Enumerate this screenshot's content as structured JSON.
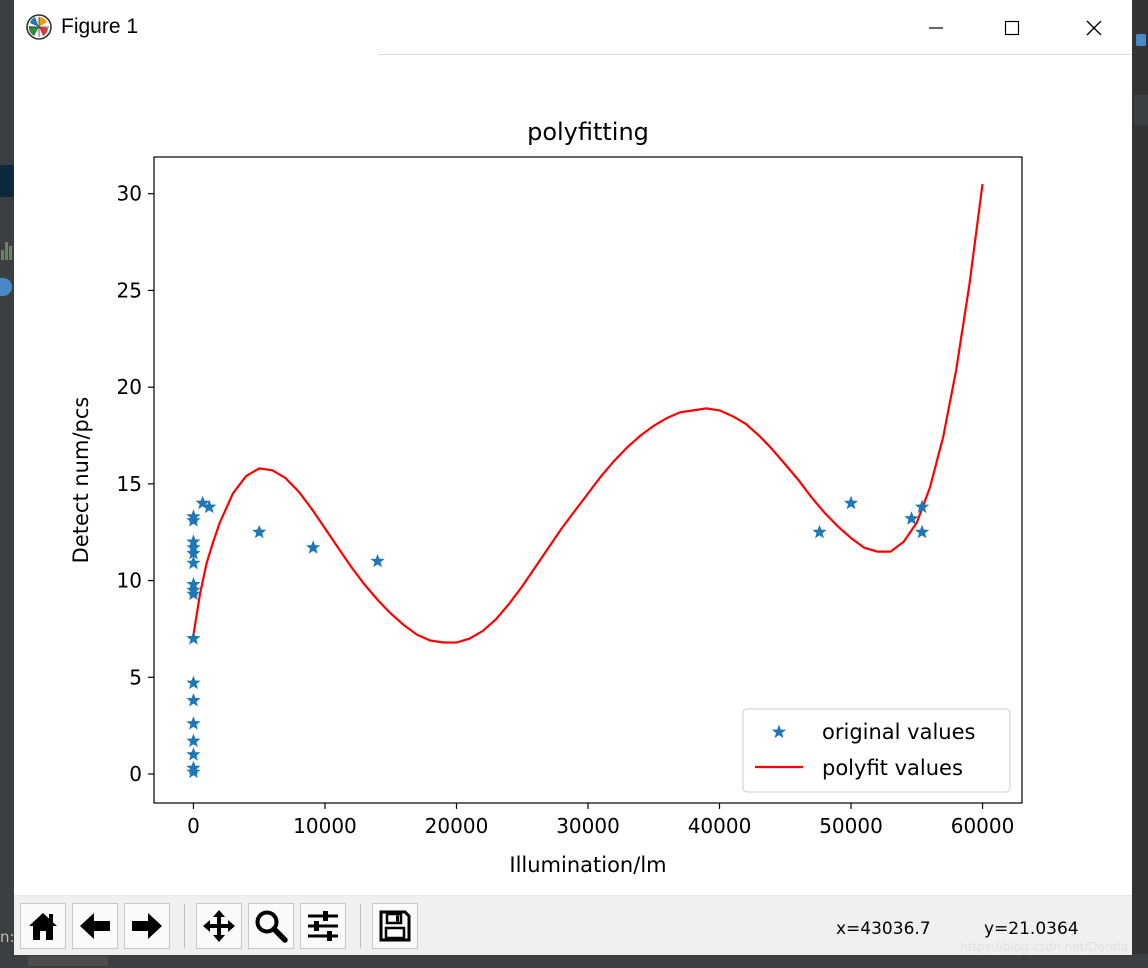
{
  "window": {
    "title": "Figure 1"
  },
  "chart_data": {
    "type": "line",
    "title": "polyfitting",
    "xlabel": "Illumination/lm",
    "ylabel": "Detect num/pcs",
    "xlim": [
      -3000,
      63000
    ],
    "ylim": [
      -1.5,
      31.9
    ],
    "xticks": [
      0,
      10000,
      20000,
      30000,
      40000,
      50000,
      60000
    ],
    "yticks": [
      0,
      5,
      10,
      15,
      20,
      25,
      30
    ],
    "grid": false,
    "legend_position": "lower-right",
    "series": [
      {
        "name": "original values",
        "kind": "scatter",
        "marker": "star",
        "color": "#1f77b4",
        "points": [
          [
            0,
            0.1
          ],
          [
            0,
            0.3
          ],
          [
            0,
            1.0
          ],
          [
            0,
            1.7
          ],
          [
            0,
            2.6
          ],
          [
            0,
            3.8
          ],
          [
            0,
            4.7
          ],
          [
            0,
            7.0
          ],
          [
            0,
            9.3
          ],
          [
            0,
            9.5
          ],
          [
            0,
            9.8
          ],
          [
            0,
            10.9
          ],
          [
            0,
            11.4
          ],
          [
            0,
            11.7
          ],
          [
            0,
            12.0
          ],
          [
            0,
            13.1
          ],
          [
            0,
            13.3
          ],
          [
            700,
            14.0
          ],
          [
            1200,
            13.8
          ],
          [
            5000,
            12.5
          ],
          [
            9100,
            11.7
          ],
          [
            14000,
            11.0
          ],
          [
            47600,
            12.5
          ],
          [
            50000,
            14.0
          ],
          [
            54600,
            13.2
          ],
          [
            55400,
            13.8
          ],
          [
            55400,
            12.5
          ]
        ]
      },
      {
        "name": "polyfit values",
        "kind": "line",
        "color": "#ff0000",
        "points": [
          [
            0,
            7.2
          ],
          [
            500,
            9.3
          ],
          [
            1000,
            10.9
          ],
          [
            1500,
            12.0
          ],
          [
            2000,
            13.0
          ],
          [
            3000,
            14.5
          ],
          [
            4000,
            15.4
          ],
          [
            5000,
            15.8
          ],
          [
            6000,
            15.7
          ],
          [
            7000,
            15.3
          ],
          [
            8000,
            14.6
          ],
          [
            9000,
            13.7
          ],
          [
            10000,
            12.7
          ],
          [
            11000,
            11.7
          ],
          [
            12000,
            10.7
          ],
          [
            13000,
            9.8
          ],
          [
            14000,
            9.0
          ],
          [
            15000,
            8.3
          ],
          [
            16000,
            7.7
          ],
          [
            17000,
            7.2
          ],
          [
            18000,
            6.9
          ],
          [
            19000,
            6.8
          ],
          [
            20000,
            6.8
          ],
          [
            21000,
            7.0
          ],
          [
            22000,
            7.4
          ],
          [
            23000,
            8.0
          ],
          [
            24000,
            8.8
          ],
          [
            25000,
            9.7
          ],
          [
            26000,
            10.7
          ],
          [
            27000,
            11.7
          ],
          [
            28000,
            12.7
          ],
          [
            29000,
            13.6
          ],
          [
            30000,
            14.5
          ],
          [
            31000,
            15.4
          ],
          [
            32000,
            16.2
          ],
          [
            33000,
            16.9
          ],
          [
            34000,
            17.5
          ],
          [
            35000,
            18.0
          ],
          [
            36000,
            18.4
          ],
          [
            37000,
            18.7
          ],
          [
            38000,
            18.8
          ],
          [
            39000,
            18.9
          ],
          [
            40000,
            18.8
          ],
          [
            41000,
            18.5
          ],
          [
            42000,
            18.1
          ],
          [
            43000,
            17.5
          ],
          [
            44000,
            16.8
          ],
          [
            45000,
            16.0
          ],
          [
            46000,
            15.2
          ],
          [
            47000,
            14.3
          ],
          [
            48000,
            13.5
          ],
          [
            49000,
            12.8
          ],
          [
            50000,
            12.2
          ],
          [
            51000,
            11.7
          ],
          [
            52000,
            11.5
          ],
          [
            53000,
            11.5
          ],
          [
            54000,
            12.0
          ],
          [
            55000,
            13.0
          ],
          [
            56000,
            14.8
          ],
          [
            57000,
            17.4
          ],
          [
            58000,
            20.9
          ],
          [
            59000,
            25.3
          ],
          [
            60000,
            30.5
          ]
        ]
      }
    ]
  },
  "status": {
    "x_readout": "x=43036.7",
    "y_readout": "y=21.0364"
  },
  "watermark": "https://blog.csdn.net/Dontla",
  "ide_fragments": {
    "bottom_left_text": "n:"
  }
}
